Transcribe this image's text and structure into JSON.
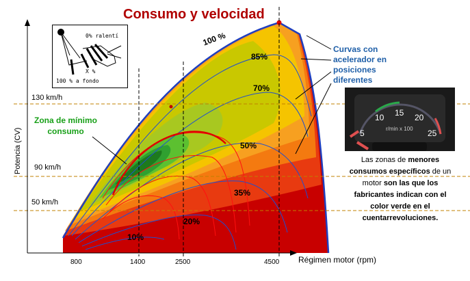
{
  "title": "Consumo y velocidad",
  "y_axis_label": "Potencia (CV)",
  "x_axis_label": "Régimen motor (rpm)",
  "x_ticks": [
    "800",
    "1400",
    "2500",
    "4500"
  ],
  "speed_lines": [
    "130 km/h",
    "90 km/h",
    "50 km/h"
  ],
  "throttle_curves": [
    "100 %",
    "85%",
    "70%",
    "50%",
    "35%",
    "20%",
    "10%"
  ],
  "zone_label": "Zona de mínimo consumo",
  "zone_label_lines": [
    "Zona de mínimo",
    "consumo"
  ],
  "curves_label_lines": [
    "Curvas con",
    "acelerador en",
    "posiciones",
    "diferentes"
  ],
  "pedal_inset": {
    "top": "0% ralentí",
    "middle": "X %",
    "bottom": "100 % a fondo"
  },
  "gauge": {
    "ticks": [
      "5",
      "10",
      "15",
      "20",
      "25"
    ],
    "unit": "r/min x 100"
  },
  "note": {
    "p1": "Las zonas de ",
    "b1": "menores consumos específicos",
    "p2": " de un motor ",
    "b2": "son las que los fabricantes indican con el color verde en el cuentarrevoluciones."
  },
  "colors": {
    "title": "#b00000",
    "envelope": "#1f3fbf",
    "zone_min": "#1a9a1a",
    "curves_label": "#1f5fa8"
  }
}
